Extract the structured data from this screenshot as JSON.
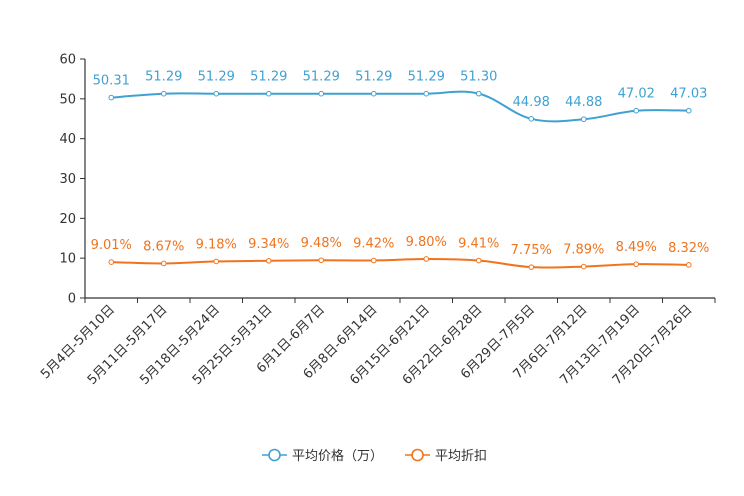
{
  "chart_data": {
    "type": "line",
    "title": "",
    "xlabel": "",
    "ylabel": "",
    "ylim": [
      0,
      60
    ],
    "yticks": [
      0,
      10,
      20,
      30,
      40,
      50,
      60
    ],
    "grid": false,
    "legend_position": "bottom-center",
    "categories": [
      "5月4日-5月10日",
      "5月11日-5月17日",
      "5月18日-5月24日",
      "5月25日-5月31日",
      "6月1日-6月7日",
      "6月8日-6月14日",
      "6月15日-6月21日",
      "6月22日-6月28日",
      "6月29日-7月5日",
      "7月6日-7月12日",
      "7月13日-7月19日",
      "7月20日-7月26日"
    ],
    "series": [
      {
        "name": "平均价格（万）",
        "color": "#3fa1d3",
        "values": [
          50.31,
          51.29,
          51.29,
          51.29,
          51.29,
          51.29,
          51.29,
          51.3,
          44.98,
          44.88,
          47.02,
          47.03
        ],
        "labels": [
          "50.31",
          "51.29",
          "51.29",
          "51.29",
          "51.29",
          "51.29",
          "51.29",
          "51.30",
          "44.98",
          "44.88",
          "47.02",
          "47.03"
        ]
      },
      {
        "name": "平均折扣",
        "color": "#f0741e",
        "values": [
          9.01,
          8.67,
          9.18,
          9.34,
          9.48,
          9.42,
          9.8,
          9.41,
          7.75,
          7.89,
          8.49,
          8.32
        ],
        "labels": [
          "9.01%",
          "8.67%",
          "9.18%",
          "9.34%",
          "9.48%",
          "9.42%",
          "9.80%",
          "9.41%",
          "7.75%",
          "7.89%",
          "8.49%",
          "8.32%"
        ]
      }
    ]
  }
}
